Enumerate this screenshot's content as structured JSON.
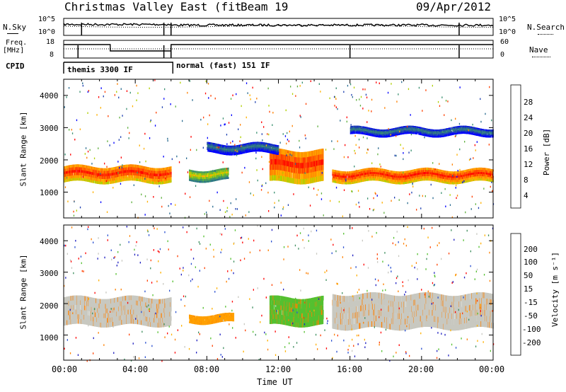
{
  "header": {
    "title": "Christmas Valley East (fitACF)",
    "beam": "Beam 19",
    "date": "09/Apr/2012"
  },
  "top_panels": {
    "nsky_label": "N.Sky",
    "nsearch_label": "N.Search",
    "noise_ticks_left": [
      "10^5",
      "10^0"
    ],
    "noise_ticks_right": [
      "10^5",
      "10^0"
    ],
    "freq_label_1": "Freq.",
    "freq_label_2": "[MHz]",
    "freq_ticks": [
      "18",
      "8"
    ],
    "nave_label": "Nave",
    "nave_ticks": [
      "60",
      "0"
    ],
    "cpid_label": "CPID",
    "cpid_mode_1": "themis 3300 IF",
    "cpid_mode_2": "normal (fast) 151 IF"
  },
  "chart_data": [
    {
      "type": "heatmap",
      "panel": "power",
      "ylabel": "Slant Range [km]",
      "yticks": [
        "4000",
        "3000",
        "2000",
        "1000"
      ],
      "ylim": [
        200,
        4500
      ],
      "xlim": [
        0,
        24
      ],
      "colorbar_label": "Power [dB]",
      "colorbar_ticks": [
        "28",
        "24",
        "20",
        "16",
        "12",
        "8",
        "4"
      ],
      "colorbar_colors": [
        "#ff0000",
        "#ff4000",
        "#ff8000",
        "#ffb000",
        "#b0d000",
        "#60b040",
        "#3a9070",
        "#2a6c90",
        "#1e40b0",
        "#0000ff"
      ],
      "echo_bands": [
        {
          "t0": 0.0,
          "t1": 6.0,
          "r0": 1300,
          "r1": 1800,
          "strength": "high"
        },
        {
          "t0": 7.0,
          "t1": 9.2,
          "r0": 1350,
          "r1": 1700,
          "strength": "medium"
        },
        {
          "t0": 11.5,
          "t1": 14.5,
          "r0": 1300,
          "r1": 2300,
          "strength": "high"
        },
        {
          "t0": 15.0,
          "t1": 24.0,
          "r0": 1300,
          "r1": 1700,
          "strength": "high"
        },
        {
          "t0": 8.0,
          "t1": 12.0,
          "r0": 2200,
          "r1": 2500,
          "strength": "low"
        },
        {
          "t0": 16.0,
          "t1": 24.0,
          "r0": 2750,
          "r1": 3000,
          "strength": "low"
        }
      ]
    },
    {
      "type": "heatmap",
      "panel": "velocity",
      "ylabel": "Slant Range [km]",
      "yticks": [
        "4000",
        "3000",
        "2000",
        "1000"
      ],
      "ylim": [
        200,
        4500
      ],
      "xlim": [
        0,
        24
      ],
      "colorbar_label": "Velocity [m s⁻¹]",
      "colorbar_ticks": [
        "200",
        "100",
        "50",
        "15",
        "-15",
        "-50",
        "-100",
        "-200"
      ],
      "colorbar_colors": [
        "#2020c0",
        "#2a50d0",
        "#3f8f5f",
        "#55c030",
        "#c8c8c0",
        "#ffb000",
        "#ff8000",
        "#ff4000",
        "#ff0000"
      ],
      "echo_bands": [
        {
          "t0": 0.0,
          "t1": 6.0,
          "r0": 1300,
          "r1": 2200,
          "color": "#c8c8c0"
        },
        {
          "t0": 7.0,
          "t1": 9.5,
          "r0": 1380,
          "r1": 1650,
          "color": "#ffa000"
        },
        {
          "t0": 11.5,
          "t1": 14.5,
          "r0": 1300,
          "r1": 2200,
          "color": "#55c030"
        },
        {
          "t0": 15.0,
          "t1": 24.0,
          "r0": 1200,
          "r1": 2300,
          "color": "#c8c8c0"
        }
      ]
    }
  ],
  "x_axis": {
    "ticks": [
      "00:00",
      "04:00",
      "08:00",
      "12:00",
      "16:00",
      "20:00",
      "00:00"
    ],
    "label": "Time UT"
  }
}
